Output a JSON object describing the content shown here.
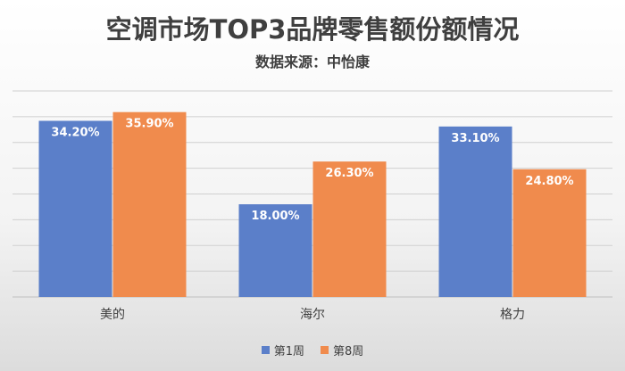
{
  "chart_data": {
    "type": "bar",
    "title": "空调市场TOP3品牌零售额份额情况",
    "subtitle": "数据来源：中怡康",
    "categories": [
      "美的",
      "海尔",
      "格力"
    ],
    "series": [
      {
        "name": "第1周",
        "color": "#5b7fc9",
        "values": [
          34.2,
          18.0,
          33.1
        ],
        "labels": [
          "34.20%",
          "18.00%",
          "33.10%"
        ]
      },
      {
        "name": "第8周",
        "color": "#f08b4d",
        "values": [
          35.9,
          26.3,
          24.8
        ],
        "labels": [
          "35.90%",
          "26.30%",
          "24.80%"
        ]
      }
    ],
    "ylim": [
      0,
      40
    ],
    "grid": true,
    "legend": "bottom",
    "xlabel": "",
    "ylabel": ""
  }
}
